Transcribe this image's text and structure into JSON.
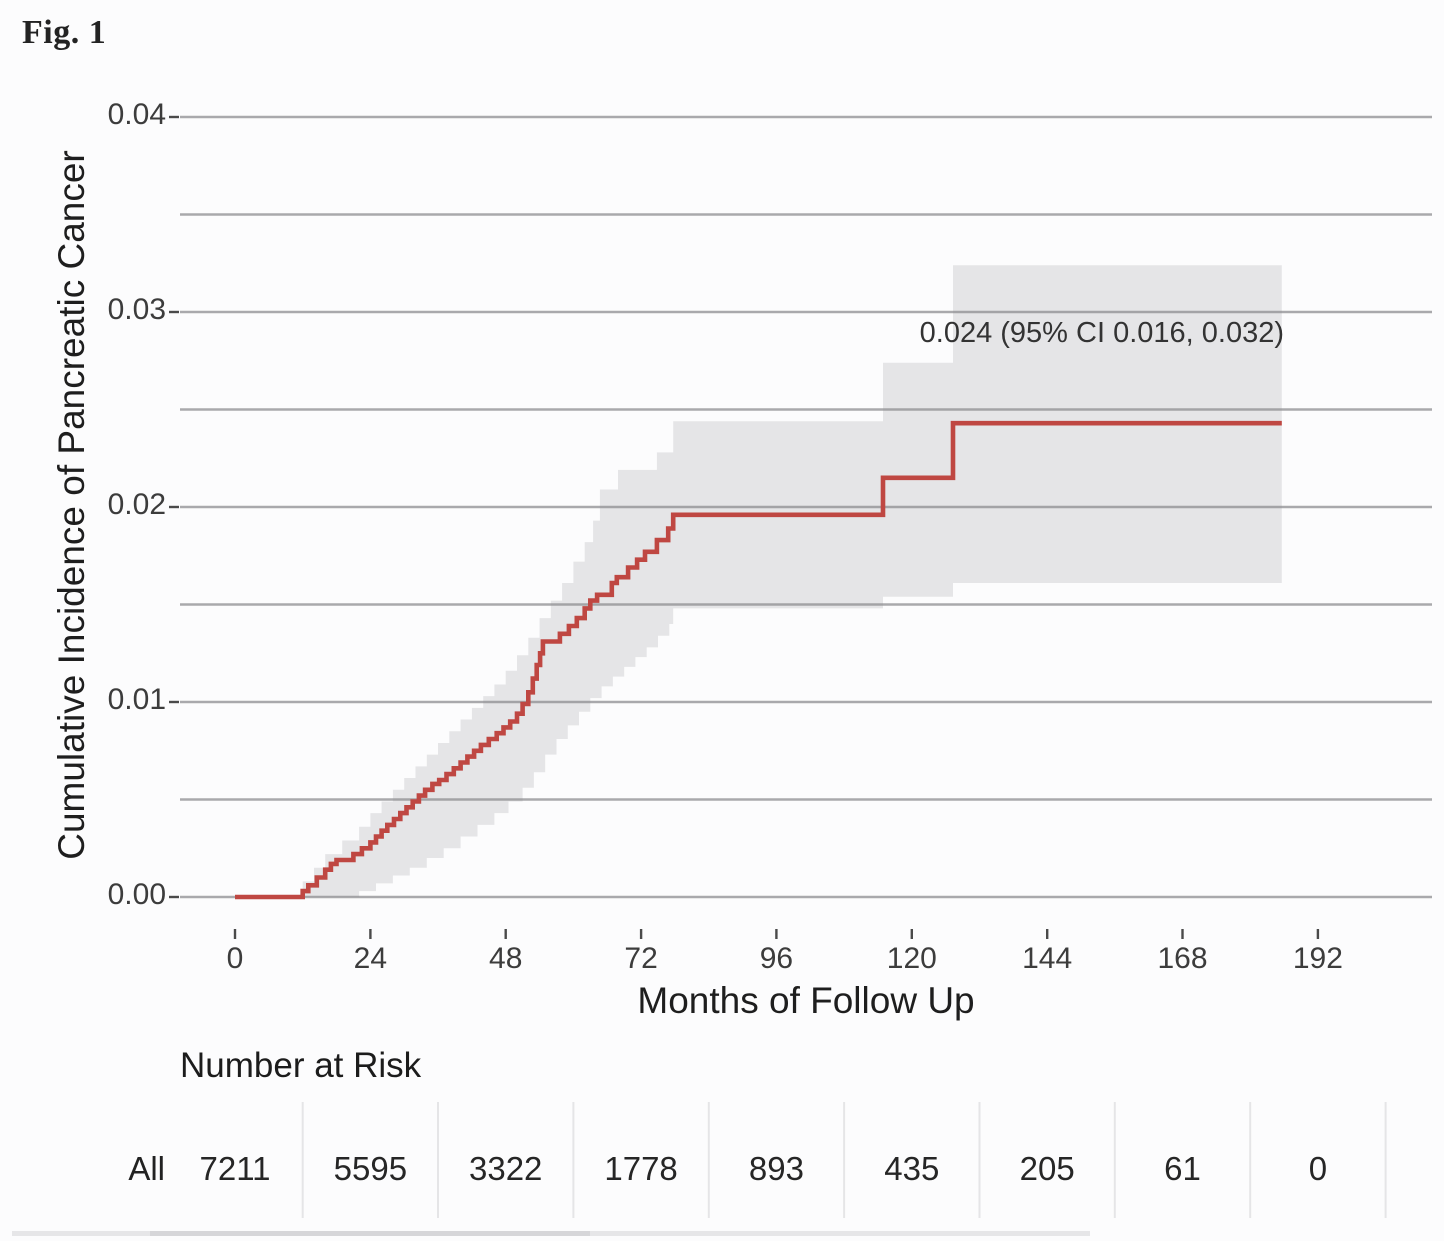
{
  "figure": {
    "label": "Fig. 1"
  },
  "chart_data": {
    "type": "line",
    "subtype": "cumulative-incidence-step-curve-with-ci-band",
    "xlabel": "Months of Follow Up",
    "ylabel": "Cumulative Incidence of Pancreatic Cancer",
    "x_ticks": [
      "0",
      "24",
      "48",
      "72",
      "96",
      "120",
      "144",
      "168",
      "192"
    ],
    "x_tick_values": [
      0,
      24,
      48,
      72,
      96,
      120,
      144,
      168,
      192
    ],
    "y_ticks": [
      "0.00",
      "0.01",
      "0.02",
      "0.03",
      "0.04"
    ],
    "y_tick_values": [
      0,
      0.01,
      0.02,
      0.03,
      0.04
    ],
    "y_gridline_values": [
      0,
      0.005,
      0.01,
      0.015,
      0.02,
      0.025,
      0.03,
      0.035,
      0.04
    ],
    "xlim": [
      0,
      199
    ],
    "ylim": [
      0,
      0.0415
    ],
    "grid": "horizontal-only",
    "legend": "none",
    "annotation": {
      "text": "0.024 (95% CI 0.016, 0.032)"
    },
    "final_estimate": {
      "value": 0.024,
      "ci_lower": 0.016,
      "ci_upper": 0.032
    },
    "colors": {
      "line": "#bf4742",
      "ci_band": "rgba(140,140,146,0.20)",
      "gridline": "#a9a9ac",
      "tick": "#4a4a4a",
      "table_divider": "#e5e5e7"
    },
    "series": [
      {
        "name": "All",
        "end_month": 185.6,
        "steps": [
          [
            0,
            0
          ],
          [
            12,
            0.0003
          ],
          [
            13,
            0.0006
          ],
          [
            14.5,
            0.001
          ],
          [
            16,
            0.0014
          ],
          [
            17,
            0.0017
          ],
          [
            18,
            0.0019
          ],
          [
            21,
            0.0022
          ],
          [
            22.5,
            0.0025
          ],
          [
            24,
            0.0028
          ],
          [
            25,
            0.0031
          ],
          [
            26,
            0.0034
          ],
          [
            27,
            0.0037
          ],
          [
            28.2,
            0.004
          ],
          [
            29.3,
            0.0043
          ],
          [
            30.4,
            0.0046
          ],
          [
            31.5,
            0.0049
          ],
          [
            32.6,
            0.0052
          ],
          [
            33.7,
            0.0055
          ],
          [
            35,
            0.0058
          ],
          [
            36.2,
            0.006
          ],
          [
            37.5,
            0.0063
          ],
          [
            38.8,
            0.0066
          ],
          [
            40,
            0.0069
          ],
          [
            41.2,
            0.0072
          ],
          [
            42.4,
            0.0075
          ],
          [
            43.6,
            0.0078
          ],
          [
            45,
            0.0081
          ],
          [
            46.4,
            0.0084
          ],
          [
            47.6,
            0.0087
          ],
          [
            48.8,
            0.009
          ],
          [
            50,
            0.0094
          ],
          [
            51,
            0.0099
          ],
          [
            52,
            0.0105
          ],
          [
            52.8,
            0.0112
          ],
          [
            53.5,
            0.0119
          ],
          [
            54.1,
            0.0125
          ],
          [
            54.6,
            0.0131
          ],
          [
            57.6,
            0.0135
          ],
          [
            59.2,
            0.0139
          ],
          [
            60.6,
            0.0143
          ],
          [
            62,
            0.0148
          ],
          [
            63,
            0.0152
          ],
          [
            64.2,
            0.0155
          ],
          [
            66.8,
            0.0161
          ],
          [
            67.7,
            0.0164
          ],
          [
            69.7,
            0.0169
          ],
          [
            71.3,
            0.0173
          ],
          [
            72.7,
            0.0177
          ],
          [
            74.8,
            0.0183
          ],
          [
            76.8,
            0.0189
          ],
          [
            77.7,
            0.0196
          ],
          [
            114.9,
            0.0215
          ],
          [
            127.3,
            0.0243
          ]
        ]
      }
    ],
    "ci_band": {
      "end_month": 185.6,
      "upper": [
        [
          12,
          0.0008
        ],
        [
          14,
          0.0015
        ],
        [
          16,
          0.0022
        ],
        [
          19,
          0.0029
        ],
        [
          22,
          0.0036
        ],
        [
          24,
          0.0043
        ],
        [
          26,
          0.0049
        ],
        [
          28,
          0.0055
        ],
        [
          30,
          0.0061
        ],
        [
          32,
          0.0067
        ],
        [
          34,
          0.0073
        ],
        [
          36,
          0.0079
        ],
        [
          38,
          0.0085
        ],
        [
          40,
          0.0091
        ],
        [
          42,
          0.0097
        ],
        [
          44,
          0.0103
        ],
        [
          46,
          0.0109
        ],
        [
          48,
          0.0116
        ],
        [
          50,
          0.0124
        ],
        [
          52,
          0.0133
        ],
        [
          54,
          0.0143
        ],
        [
          56,
          0.0152
        ],
        [
          58,
          0.0161
        ],
        [
          60,
          0.0172
        ],
        [
          62,
          0.0182
        ],
        [
          63.5,
          0.0193
        ],
        [
          64.7,
          0.0209
        ],
        [
          67.9,
          0.0219
        ],
        [
          74.8,
          0.0228
        ],
        [
          77.7,
          0.0244
        ],
        [
          114.9,
          0.0274
        ],
        [
          127.3,
          0.0324
        ]
      ],
      "lower": [
        [
          12,
          0
        ],
        [
          22,
          0.0003
        ],
        [
          25,
          0.0007
        ],
        [
          28,
          0.0011
        ],
        [
          31,
          0.0015
        ],
        [
          34,
          0.002
        ],
        [
          37,
          0.0025
        ],
        [
          40,
          0.0031
        ],
        [
          43,
          0.0037
        ],
        [
          46,
          0.0043
        ],
        [
          48.5,
          0.0049
        ],
        [
          51,
          0.0056
        ],
        [
          53,
          0.0064
        ],
        [
          55,
          0.0073
        ],
        [
          57,
          0.0081
        ],
        [
          59,
          0.0088
        ],
        [
          61,
          0.0095
        ],
        [
          63,
          0.0102
        ],
        [
          65,
          0.0108
        ],
        [
          67,
          0.0113
        ],
        [
          69,
          0.0118
        ],
        [
          71,
          0.0123
        ],
        [
          73,
          0.0128
        ],
        [
          75,
          0.0134
        ],
        [
          77,
          0.014
        ],
        [
          77.7,
          0.0148
        ],
        [
          114.9,
          0.0154
        ],
        [
          127.3,
          0.0161
        ]
      ]
    }
  },
  "risk_table": {
    "title": "Number at Risk",
    "row_label": "All",
    "column_months": [
      0,
      24,
      48,
      72,
      96,
      120,
      144,
      168,
      192
    ],
    "values": [
      "7211",
      "5595",
      "3322",
      "1778",
      "893",
      "435",
      "205",
      "61",
      "0"
    ]
  }
}
